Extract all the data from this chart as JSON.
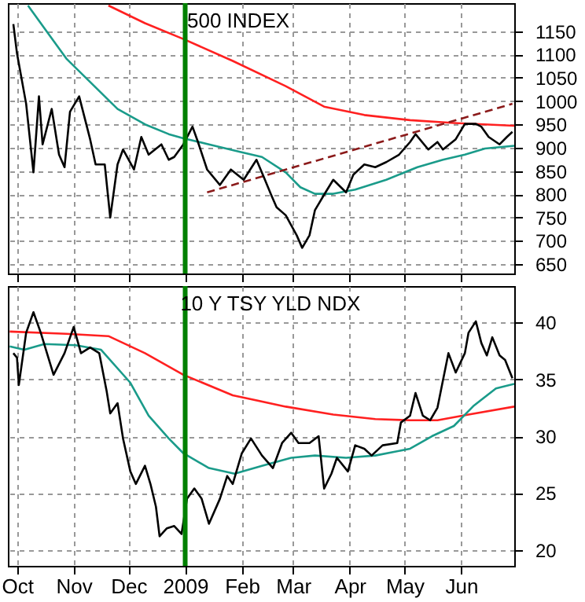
{
  "chart_data": [
    {
      "type": "line",
      "title": "500 INDEX",
      "xlim": [
        "2008-09-26",
        "2009-06-30"
      ],
      "ylim": [
        630,
        1210
      ],
      "yticks": [
        650,
        700,
        750,
        800,
        850,
        900,
        950,
        1000,
        1050,
        1100,
        1150
      ],
      "xticks": [
        {
          "value": "2008-10-01",
          "label": null
        },
        {
          "value": "2008-11-01",
          "label": null
        },
        {
          "value": "2008-12-01",
          "label": null
        },
        {
          "value": "2009-01-01",
          "label": null
        },
        {
          "value": "2009-02-01",
          "label": null
        },
        {
          "value": "2009-03-01",
          "label": null
        },
        {
          "value": "2009-04-01",
          "label": null
        },
        {
          "value": "2009-05-01",
          "label": null
        },
        {
          "value": "2009-06-01",
          "label": null
        }
      ],
      "tick_labels": "y",
      "grid": true,
      "ref_lines": [
        {
          "axis": "x",
          "value": "2009-01-01",
          "color": "#008000"
        }
      ],
      "series": [
        {
          "color": "#ff2020",
          "x": [
            "2008-11-20",
            "2008-12-10",
            "2008-12-31",
            "2009-01-27",
            "2009-02-25",
            "2009-03-18",
            "2009-04-09",
            "2009-05-04",
            "2009-05-28",
            "2009-06-30"
          ],
          "values": [
            1205,
            1167,
            1133,
            1086,
            1032,
            988,
            970,
            959,
            953,
            947
          ]
        },
        {
          "color": "#1a9b8a",
          "x": [
            "2008-10-07",
            "2008-10-16",
            "2008-10-28",
            "2008-11-11",
            "2008-11-25",
            "2008-12-10",
            "2008-12-23",
            "2008-12-31",
            "2009-01-14",
            "2009-01-31",
            "2009-02-12",
            "2009-02-25",
            "2009-03-05",
            "2009-03-13",
            "2009-03-23",
            "2009-04-04",
            "2009-04-21",
            "2009-05-08",
            "2009-05-22",
            "2009-06-03",
            "2009-06-14",
            "2009-06-30"
          ],
          "values": [
            1205,
            1156,
            1091,
            1037,
            983,
            950,
            929,
            920,
            907,
            891,
            880,
            847,
            815,
            801,
            801,
            810,
            831,
            858,
            874,
            885,
            898,
            904
          ]
        },
        {
          "color": "#8b1a1a",
          "line_style": "dashed",
          "x": [
            "2009-01-13",
            "2009-06-29"
          ],
          "values": [
            804,
            994
          ]
        },
        {
          "color": "#000000",
          "x": [
            "2008-09-29",
            "2008-10-01",
            "2008-10-06",
            "2008-10-10",
            "2008-10-13",
            "2008-10-15",
            "2008-10-20",
            "2008-10-24",
            "2008-10-27",
            "2008-10-30",
            "2008-11-04",
            "2008-11-10",
            "2008-11-13",
            "2008-11-18",
            "2008-11-21",
            "2008-11-25",
            "2008-11-28",
            "2008-12-04",
            "2008-12-08",
            "2008-12-12",
            "2008-12-19",
            "2008-12-23",
            "2008-12-26",
            "2008-12-31",
            "2009-01-05",
            "2009-01-08",
            "2009-01-13",
            "2009-01-20",
            "2009-01-26",
            "2009-02-02",
            "2009-02-09",
            "2009-02-13",
            "2009-02-17",
            "2009-02-20",
            "2009-02-25",
            "2009-03-03",
            "2009-03-06",
            "2009-03-10",
            "2009-03-13",
            "2009-03-18",
            "2009-03-23",
            "2009-03-30",
            "2009-04-03",
            "2009-04-09",
            "2009-04-15",
            "2009-04-21",
            "2009-04-28",
            "2009-05-04",
            "2009-05-07",
            "2009-05-14",
            "2009-05-19",
            "2009-05-22",
            "2009-05-29",
            "2009-06-03",
            "2009-06-09",
            "2009-06-12",
            "2009-06-16",
            "2009-06-22",
            "2009-06-26",
            "2009-06-29"
          ],
          "values": [
            1165,
            1102,
            994,
            847,
            1010,
            907,
            983,
            885,
            858,
            977,
            1010,
            918,
            864,
            864,
            750,
            864,
            896,
            853,
            923,
            885,
            907,
            874,
            880,
            907,
            945,
            912,
            853,
            820,
            853,
            831,
            874,
            837,
            799,
            772,
            755,
            712,
            685,
            712,
            766,
            799,
            831,
            804,
            842,
            864,
            858,
            869,
            885,
            912,
            929,
            896,
            912,
            896,
            918,
            951,
            951,
            945,
            923,
            907,
            923,
            934
          ]
        }
      ]
    },
    {
      "type": "line",
      "title": "10 Y TSY YLD NDX",
      "xlim": [
        "2008-09-26",
        "2009-06-30"
      ],
      "ylim": [
        18.6,
        43.2
      ],
      "yticks": [
        20,
        25,
        30,
        35,
        40
      ],
      "xticks": [
        {
          "value": "2008-10-01",
          "label": "Oct"
        },
        {
          "value": "2008-11-01",
          "label": "Nov"
        },
        {
          "value": "2008-12-01",
          "label": "Dec"
        },
        {
          "value": "2009-01-01",
          "label": "2009"
        },
        {
          "value": "2009-02-01",
          "label": "Feb"
        },
        {
          "value": "2009-03-01",
          "label": "Mar"
        },
        {
          "value": "2009-04-01",
          "label": "Apr"
        },
        {
          "value": "2009-05-01",
          "label": "May"
        },
        {
          "value": "2009-06-01",
          "label": "Jun"
        }
      ],
      "grid": true,
      "ref_lines": [
        {
          "axis": "x",
          "value": "2009-01-01",
          "color": "#008000"
        }
      ],
      "series": [
        {
          "color": "#ff2020",
          "x": [
            "2008-09-27",
            "2008-10-28",
            "2008-11-20",
            "2008-12-10",
            "2008-12-31",
            "2009-01-27",
            "2009-02-25",
            "2009-03-23",
            "2009-04-15",
            "2009-05-04",
            "2009-05-19",
            "2009-06-05",
            "2009-06-30"
          ],
          "values": [
            39.2,
            39.0,
            38.8,
            37.3,
            35.4,
            33.6,
            32.6,
            31.9,
            31.5,
            31.4,
            31.4,
            31.9,
            32.6
          ]
        },
        {
          "color": "#1a9b8a",
          "x": [
            "2008-09-27",
            "2008-10-05",
            "2008-10-16",
            "2008-11-02",
            "2008-11-16",
            "2008-12-02",
            "2008-12-12",
            "2008-12-23",
            "2008-12-31",
            "2009-01-14",
            "2009-01-28",
            "2009-02-12",
            "2009-02-28",
            "2009-03-13",
            "2009-03-30",
            "2009-04-15",
            "2009-05-04",
            "2009-05-16",
            "2009-05-28",
            "2009-06-08",
            "2009-06-20",
            "2009-06-30"
          ],
          "values": [
            37.9,
            37.6,
            38.1,
            38.0,
            37.6,
            34.7,
            31.8,
            29.8,
            28.5,
            27.2,
            26.7,
            27.4,
            28.1,
            28.3,
            28.1,
            28.3,
            28.9,
            30.0,
            30.9,
            32.7,
            34.2,
            34.6
          ]
        },
        {
          "color": "#000000",
          "x": [
            "2008-09-29",
            "2008-10-01",
            "2008-10-02",
            "2008-10-06",
            "2008-10-10",
            "2008-10-14",
            "2008-10-21",
            "2008-10-27",
            "2008-11-01",
            "2008-11-05",
            "2008-11-10",
            "2008-11-15",
            "2008-11-19",
            "2008-11-21",
            "2008-11-25",
            "2008-11-28",
            "2008-12-02",
            "2008-12-05",
            "2008-12-10",
            "2008-12-13",
            "2008-12-16",
            "2008-12-18",
            "2008-12-22",
            "2008-12-26",
            "2008-12-30",
            "2009-01-02",
            "2009-01-06",
            "2009-01-10",
            "2009-01-14",
            "2009-01-20",
            "2009-01-24",
            "2009-01-27",
            "2009-02-01",
            "2009-02-06",
            "2009-02-12",
            "2009-02-18",
            "2009-02-23",
            "2009-02-28",
            "2009-03-04",
            "2009-03-10",
            "2009-03-15",
            "2009-03-18",
            "2009-03-22",
            "2009-03-25",
            "2009-03-31",
            "2009-04-04",
            "2009-04-09",
            "2009-04-13",
            "2009-04-19",
            "2009-04-27",
            "2009-04-29",
            "2009-05-04",
            "2009-05-07",
            "2009-05-11",
            "2009-05-15",
            "2009-05-19",
            "2009-05-22",
            "2009-05-25",
            "2009-05-29",
            "2009-06-03",
            "2009-06-05",
            "2009-06-09",
            "2009-06-12",
            "2009-06-15",
            "2009-06-18",
            "2009-06-22",
            "2009-06-25",
            "2009-06-29"
          ],
          "values": [
            37.3,
            36.9,
            34.5,
            39.1,
            40.9,
            39.1,
            35.4,
            37.3,
            39.6,
            37.3,
            37.8,
            37.3,
            34.0,
            32.0,
            32.9,
            29.8,
            26.9,
            25.8,
            27.4,
            25.8,
            23.8,
            21.2,
            21.9,
            22.1,
            21.4,
            24.5,
            25.4,
            24.5,
            22.3,
            24.5,
            26.5,
            25.8,
            28.5,
            29.8,
            28.3,
            27.2,
            29.4,
            30.3,
            29.4,
            29.4,
            30.0,
            25.4,
            26.7,
            28.1,
            26.9,
            29.2,
            28.9,
            28.3,
            29.2,
            29.4,
            31.2,
            31.8,
            33.8,
            31.8,
            31.4,
            32.5,
            34.9,
            37.3,
            35.6,
            37.3,
            39.1,
            40.1,
            38.2,
            37.1,
            38.7,
            37.1,
            36.7,
            35.1
          ]
        }
      ]
    }
  ]
}
